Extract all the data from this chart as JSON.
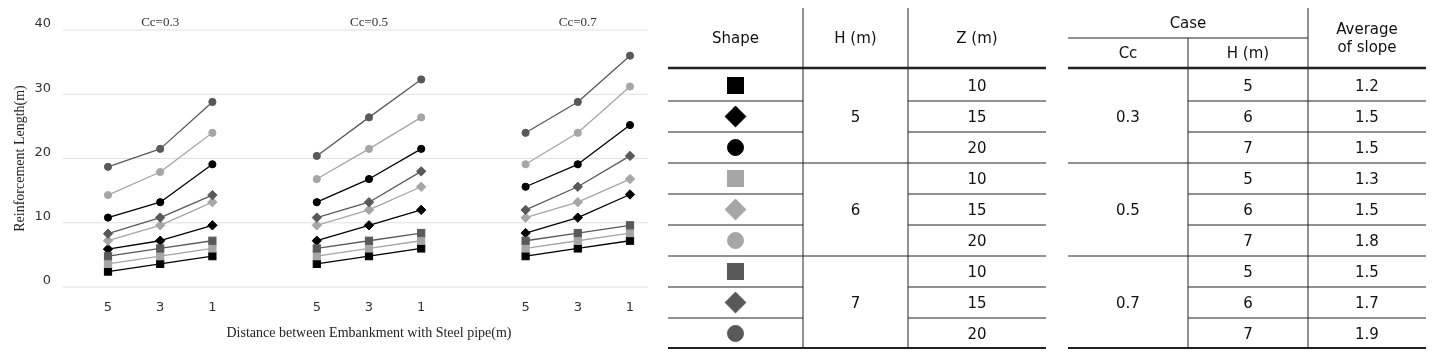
{
  "chart_data": [
    {
      "type": "line",
      "xlabel": "Distance between Embankment with Steel pipe(m)",
      "ylabel": "Reinforcement Length(m)",
      "categories": [
        "5",
        "3",
        "1",
        null,
        "5",
        "3",
        "1",
        null,
        "5",
        "3",
        "1"
      ],
      "ylim": [
        0,
        40
      ],
      "yticks": [
        0,
        10,
        20,
        30,
        40
      ],
      "grid": "y",
      "annotations": [
        "Cc=0.3",
        "Cc=0.5",
        "Cc=0.7"
      ],
      "series": [
        {
          "color": "#000000",
          "marker": "square",
          "values": [
            2.4,
            3.6,
            4.8,
            null,
            3.6,
            4.8,
            6.0,
            null,
            4.8,
            6.0,
            7.2
          ]
        },
        {
          "color": "#000000",
          "marker": "diamond",
          "values": [
            5.9,
            7.2,
            9.6,
            null,
            7.2,
            9.6,
            12.0,
            null,
            8.4,
            10.8,
            14.4
          ]
        },
        {
          "color": "#000000",
          "marker": "circle",
          "values": [
            10.8,
            13.2,
            19.1,
            null,
            13.2,
            16.8,
            21.5,
            null,
            15.6,
            19.1,
            25.2
          ]
        },
        {
          "color": "#a6a6a6",
          "marker": "square",
          "values": [
            3.6,
            4.8,
            6.0,
            null,
            4.8,
            6.0,
            7.2,
            null,
            6.0,
            7.2,
            8.4
          ]
        },
        {
          "color": "#a6a6a6",
          "marker": "diamond",
          "values": [
            7.2,
            9.6,
            13.2,
            null,
            9.6,
            12.0,
            15.6,
            null,
            10.8,
            13.2,
            16.8
          ]
        },
        {
          "color": "#a6a6a6",
          "marker": "circle",
          "values": [
            14.3,
            17.9,
            24.0,
            null,
            16.8,
            21.5,
            26.4,
            null,
            19.1,
            24.0,
            31.2
          ]
        },
        {
          "color": "#595959",
          "marker": "square",
          "values": [
            4.8,
            6.0,
            7.2,
            null,
            6.0,
            7.2,
            8.4,
            null,
            7.2,
            8.4,
            9.6
          ]
        },
        {
          "color": "#595959",
          "marker": "diamond",
          "values": [
            8.3,
            10.8,
            14.3,
            null,
            10.8,
            13.2,
            18.0,
            null,
            12.0,
            15.6,
            20.4
          ]
        },
        {
          "color": "#595959",
          "marker": "circle",
          "values": [
            18.7,
            21.5,
            28.8,
            null,
            20.4,
            26.4,
            32.3,
            null,
            24.0,
            28.8,
            36.0
          ]
        }
      ]
    },
    {
      "type": "other",
      "annotations": [
        "Shape",
        "H (m)",
        "Z (m)",
        "Case",
        "Cc",
        "H (m)",
        "Average of slope",
        "5",
        "6",
        "7",
        "10",
        "15",
        "20",
        "10",
        "15",
        "20",
        "10",
        "15",
        "20",
        "0.3",
        "0.5",
        "0.7",
        "5",
        "6",
        "7",
        "5",
        "6",
        "7",
        "5",
        "6",
        "7",
        "1.2",
        "1.5",
        "1.5",
        "1.3",
        "1.5",
        "1.8",
        "1.5",
        "1.7",
        "1.9"
      ]
    }
  ]
}
